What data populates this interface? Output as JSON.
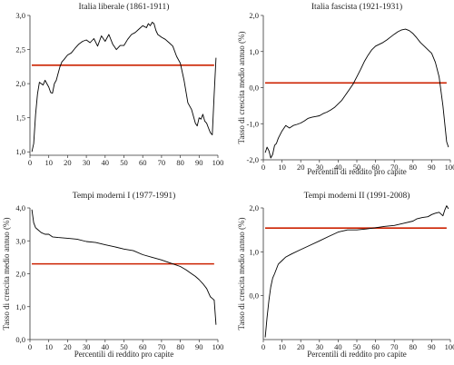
{
  "chart_data": [
    {
      "type": "line",
      "title": "Italia liberale (1861-1911)",
      "xlabel": "",
      "ylabel": "",
      "xlim": [
        0,
        100
      ],
      "ylim": [
        0.95,
        3.0
      ],
      "xticks": [
        0,
        10,
        20,
        30,
        40,
        50,
        60,
        70,
        80,
        90,
        100
      ],
      "yticks": [
        1.0,
        1.5,
        2.0,
        2.5,
        3.0
      ],
      "ytick_labels": [
        "1,0",
        "1,5",
        "2,0",
        "2,5",
        "3,0"
      ],
      "reference_line": 2.27,
      "line_color": "#000000",
      "reference_color": "#cc2200",
      "series": [
        {
          "x": [
            1,
            2,
            3,
            4,
            5,
            6,
            7,
            8,
            9,
            10,
            11,
            12,
            13,
            14,
            15,
            16,
            17,
            18,
            20,
            22,
            24,
            26,
            28,
            30,
            32,
            34,
            36,
            38,
            40,
            42,
            44,
            46,
            48,
            50,
            52,
            54,
            56,
            58,
            60,
            62,
            63,
            64,
            65,
            66,
            67,
            68,
            70,
            72,
            74,
            76,
            78,
            80,
            82,
            84,
            86,
            88,
            89,
            90,
            91,
            92,
            93,
            94,
            95,
            96,
            97,
            98,
            99
          ],
          "values": [
            1.0,
            1.12,
            1.55,
            1.85,
            2.02,
            2.0,
            1.98,
            2.05,
            2.0,
            1.95,
            1.87,
            1.86,
            2.0,
            2.05,
            2.15,
            2.25,
            2.32,
            2.35,
            2.42,
            2.45,
            2.52,
            2.58,
            2.62,
            2.64,
            2.6,
            2.66,
            2.55,
            2.7,
            2.62,
            2.72,
            2.58,
            2.5,
            2.56,
            2.56,
            2.65,
            2.72,
            2.75,
            2.8,
            2.85,
            2.82,
            2.88,
            2.85,
            2.9,
            2.88,
            2.78,
            2.72,
            2.68,
            2.65,
            2.6,
            2.55,
            2.4,
            2.3,
            2.05,
            1.72,
            1.62,
            1.42,
            1.38,
            1.5,
            1.48,
            1.55,
            1.45,
            1.42,
            1.35,
            1.28,
            1.25,
            1.85,
            2.38
          ]
        }
      ]
    },
    {
      "type": "line",
      "title": "Italia fascista (1921-1931)",
      "xlabel": "Percentili di reddito pro capite",
      "ylabel": "Tasso di crescita medio annuo (%)",
      "xlim": [
        0,
        100
      ],
      "ylim": [
        -2.0,
        2.0
      ],
      "xticks": [
        0,
        10,
        20,
        30,
        40,
        50,
        60,
        70,
        80,
        90,
        100
      ],
      "yticks": [
        -2.0,
        -1.0,
        0.0,
        1.0,
        2.0
      ],
      "ytick_labels": [
        "-2,0",
        "-1,0",
        "0,0",
        "1,0",
        "2,0"
      ],
      "reference_line": 0.13,
      "line_color": "#000000",
      "reference_color": "#cc2200",
      "series": [
        {
          "x": [
            1,
            2,
            3,
            4,
            5,
            6,
            7,
            8,
            10,
            12,
            14,
            16,
            18,
            20,
            22,
            24,
            26,
            28,
            30,
            32,
            34,
            36,
            38,
            40,
            42,
            44,
            46,
            48,
            50,
            52,
            54,
            56,
            58,
            60,
            62,
            64,
            66,
            68,
            70,
            72,
            74,
            76,
            78,
            80,
            82,
            84,
            86,
            88,
            90,
            92,
            94,
            96,
            98,
            99
          ],
          "values": [
            -1.8,
            -1.65,
            -1.75,
            -1.95,
            -1.85,
            -1.6,
            -1.55,
            -1.4,
            -1.2,
            -1.05,
            -1.12,
            -1.05,
            -1.02,
            -0.98,
            -0.92,
            -0.85,
            -0.82,
            -0.8,
            -0.78,
            -0.72,
            -0.68,
            -0.62,
            -0.55,
            -0.45,
            -0.35,
            -0.2,
            -0.05,
            0.1,
            0.3,
            0.5,
            0.72,
            0.9,
            1.05,
            1.15,
            1.2,
            1.25,
            1.32,
            1.4,
            1.48,
            1.55,
            1.6,
            1.62,
            1.58,
            1.5,
            1.38,
            1.25,
            1.15,
            1.05,
            0.95,
            0.7,
            0.3,
            -0.5,
            -1.5,
            -1.65
          ]
        }
      ]
    },
    {
      "type": "line",
      "title": "Tempi moderni I (1977-1991)",
      "xlabel": "Percentili di reddito pro capite",
      "ylabel": "Tasso di crescita medio annuo (%)",
      "xlim": [
        0,
        100
      ],
      "ylim": [
        0.0,
        4.0
      ],
      "xticks": [
        0,
        10,
        20,
        30,
        40,
        50,
        60,
        70,
        80,
        90,
        100
      ],
      "yticks": [
        0.0,
        1.0,
        2.0,
        3.0,
        4.0
      ],
      "ytick_labels": [
        "0,0",
        "1,0",
        "2,0",
        "3,0",
        "4,0"
      ],
      "reference_line": 2.3,
      "line_color": "#000000",
      "reference_color": "#cc2200",
      "series": [
        {
          "x": [
            1,
            2,
            3,
            4,
            6,
            8,
            10,
            12,
            15,
            20,
            25,
            30,
            35,
            40,
            45,
            50,
            55,
            60,
            65,
            70,
            75,
            80,
            83,
            86,
            88,
            90,
            92,
            94,
            96,
            97,
            98,
            99
          ],
          "values": [
            3.95,
            3.55,
            3.4,
            3.35,
            3.25,
            3.2,
            3.2,
            3.12,
            3.1,
            3.08,
            3.05,
            2.98,
            2.95,
            2.88,
            2.82,
            2.75,
            2.7,
            2.58,
            2.5,
            2.42,
            2.32,
            2.22,
            2.12,
            2.0,
            1.92,
            1.82,
            1.7,
            1.55,
            1.3,
            1.25,
            1.2,
            0.45
          ]
        }
      ]
    },
    {
      "type": "line",
      "title": "Tempi moderni II (1991-2008)",
      "xlabel": "Percentili di reddito pro capite",
      "ylabel": "Tasso di crescita medio annuo (%)",
      "xlim": [
        0,
        100
      ],
      "ylim": [
        -1.0,
        2.0
      ],
      "xticks": [
        0,
        10,
        20,
        30,
        40,
        50,
        60,
        70,
        80,
        90,
        100
      ],
      "yticks": [
        0.0,
        1.0,
        2.0
      ],
      "ytick_labels": [
        "0,0",
        "1,0",
        "2,0"
      ],
      "reference_line": 1.54,
      "line_color": "#000000",
      "reference_color": "#cc2200",
      "series": [
        {
          "x": [
            1,
            2,
            3,
            4,
            5,
            6,
            8,
            10,
            12,
            15,
            20,
            25,
            30,
            35,
            40,
            45,
            50,
            55,
            60,
            65,
            70,
            75,
            80,
            82,
            85,
            88,
            90,
            92,
            94,
            96,
            97,
            98,
            99
          ],
          "values": [
            -0.95,
            -0.5,
            -0.1,
            0.2,
            0.4,
            0.5,
            0.72,
            0.8,
            0.88,
            0.95,
            1.05,
            1.15,
            1.25,
            1.35,
            1.45,
            1.5,
            1.5,
            1.52,
            1.55,
            1.58,
            1.6,
            1.65,
            1.7,
            1.75,
            1.78,
            1.8,
            1.85,
            1.88,
            1.9,
            1.82,
            1.95,
            2.05,
            1.98
          ]
        }
      ]
    }
  ]
}
